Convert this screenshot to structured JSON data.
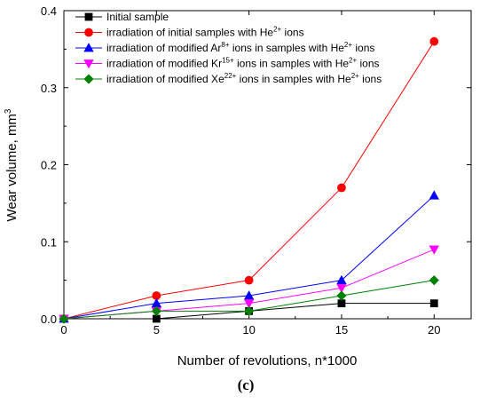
{
  "chart_data": {
    "type": "line",
    "x": [
      0,
      5,
      10,
      15,
      20
    ],
    "xlabel": "Number of revolutions, n*1000",
    "ylabel": "Wear volume, mm",
    "ylabel_sup": "3",
    "xlim": [
      0,
      22
    ],
    "ylim": [
      0,
      0.4
    ],
    "x_ticks": [
      "0",
      "5",
      "10",
      "15",
      "20"
    ],
    "y_ticks": [
      "0.0",
      "0.1",
      "0.2",
      "0.3",
      "0.4"
    ],
    "y_tick_values": [
      0,
      0.1,
      0.2,
      0.3,
      0.4
    ],
    "legend_placement": "top-left",
    "grid": false,
    "panel_label": "(c)",
    "series": [
      {
        "name_parts": [
          {
            "t": "Initial sample"
          }
        ],
        "values": [
          0,
          0,
          0.01,
          0.02,
          0.02
        ],
        "color": "#000000",
        "marker": "square"
      },
      {
        "name_parts": [
          {
            "t": "irradiation of initial samples with He"
          },
          {
            "t": "2+",
            "sup": true
          },
          {
            "t": " ions"
          }
        ],
        "values": [
          0,
          0.03,
          0.05,
          0.17,
          0.36
        ],
        "color": "#ff0000",
        "marker": "circle"
      },
      {
        "name_parts": [
          {
            "t": "irradiation of modified Ar"
          },
          {
            "t": "8+",
            "sup": true
          },
          {
            "t": " ions in samples with He"
          },
          {
            "t": "2+",
            "sup": true
          },
          {
            "t": " ions"
          }
        ],
        "values": [
          0,
          0.02,
          0.03,
          0.05,
          0.16
        ],
        "color": "#0000ff",
        "marker": "triangle-up"
      },
      {
        "name_parts": [
          {
            "t": "irradiation of modified Kr"
          },
          {
            "t": "15+",
            "sup": true
          },
          {
            "t": " ions in samples with He"
          },
          {
            "t": "2+",
            "sup": true
          },
          {
            "t": " ions"
          }
        ],
        "values": [
          0,
          0.01,
          0.02,
          0.04,
          0.09
        ],
        "color": "#ff00ff",
        "marker": "triangle-down"
      },
      {
        "name_parts": [
          {
            "t": "irradiation of modified Xe"
          },
          {
            "t": "22+",
            "sup": true
          },
          {
            "t": " ions in samples with He"
          },
          {
            "t": "2+",
            "sup": true
          },
          {
            "t": " ions"
          }
        ],
        "values": [
          0,
          0.01,
          0.01,
          0.03,
          0.05
        ],
        "color": "#008000",
        "marker": "diamond"
      }
    ]
  }
}
